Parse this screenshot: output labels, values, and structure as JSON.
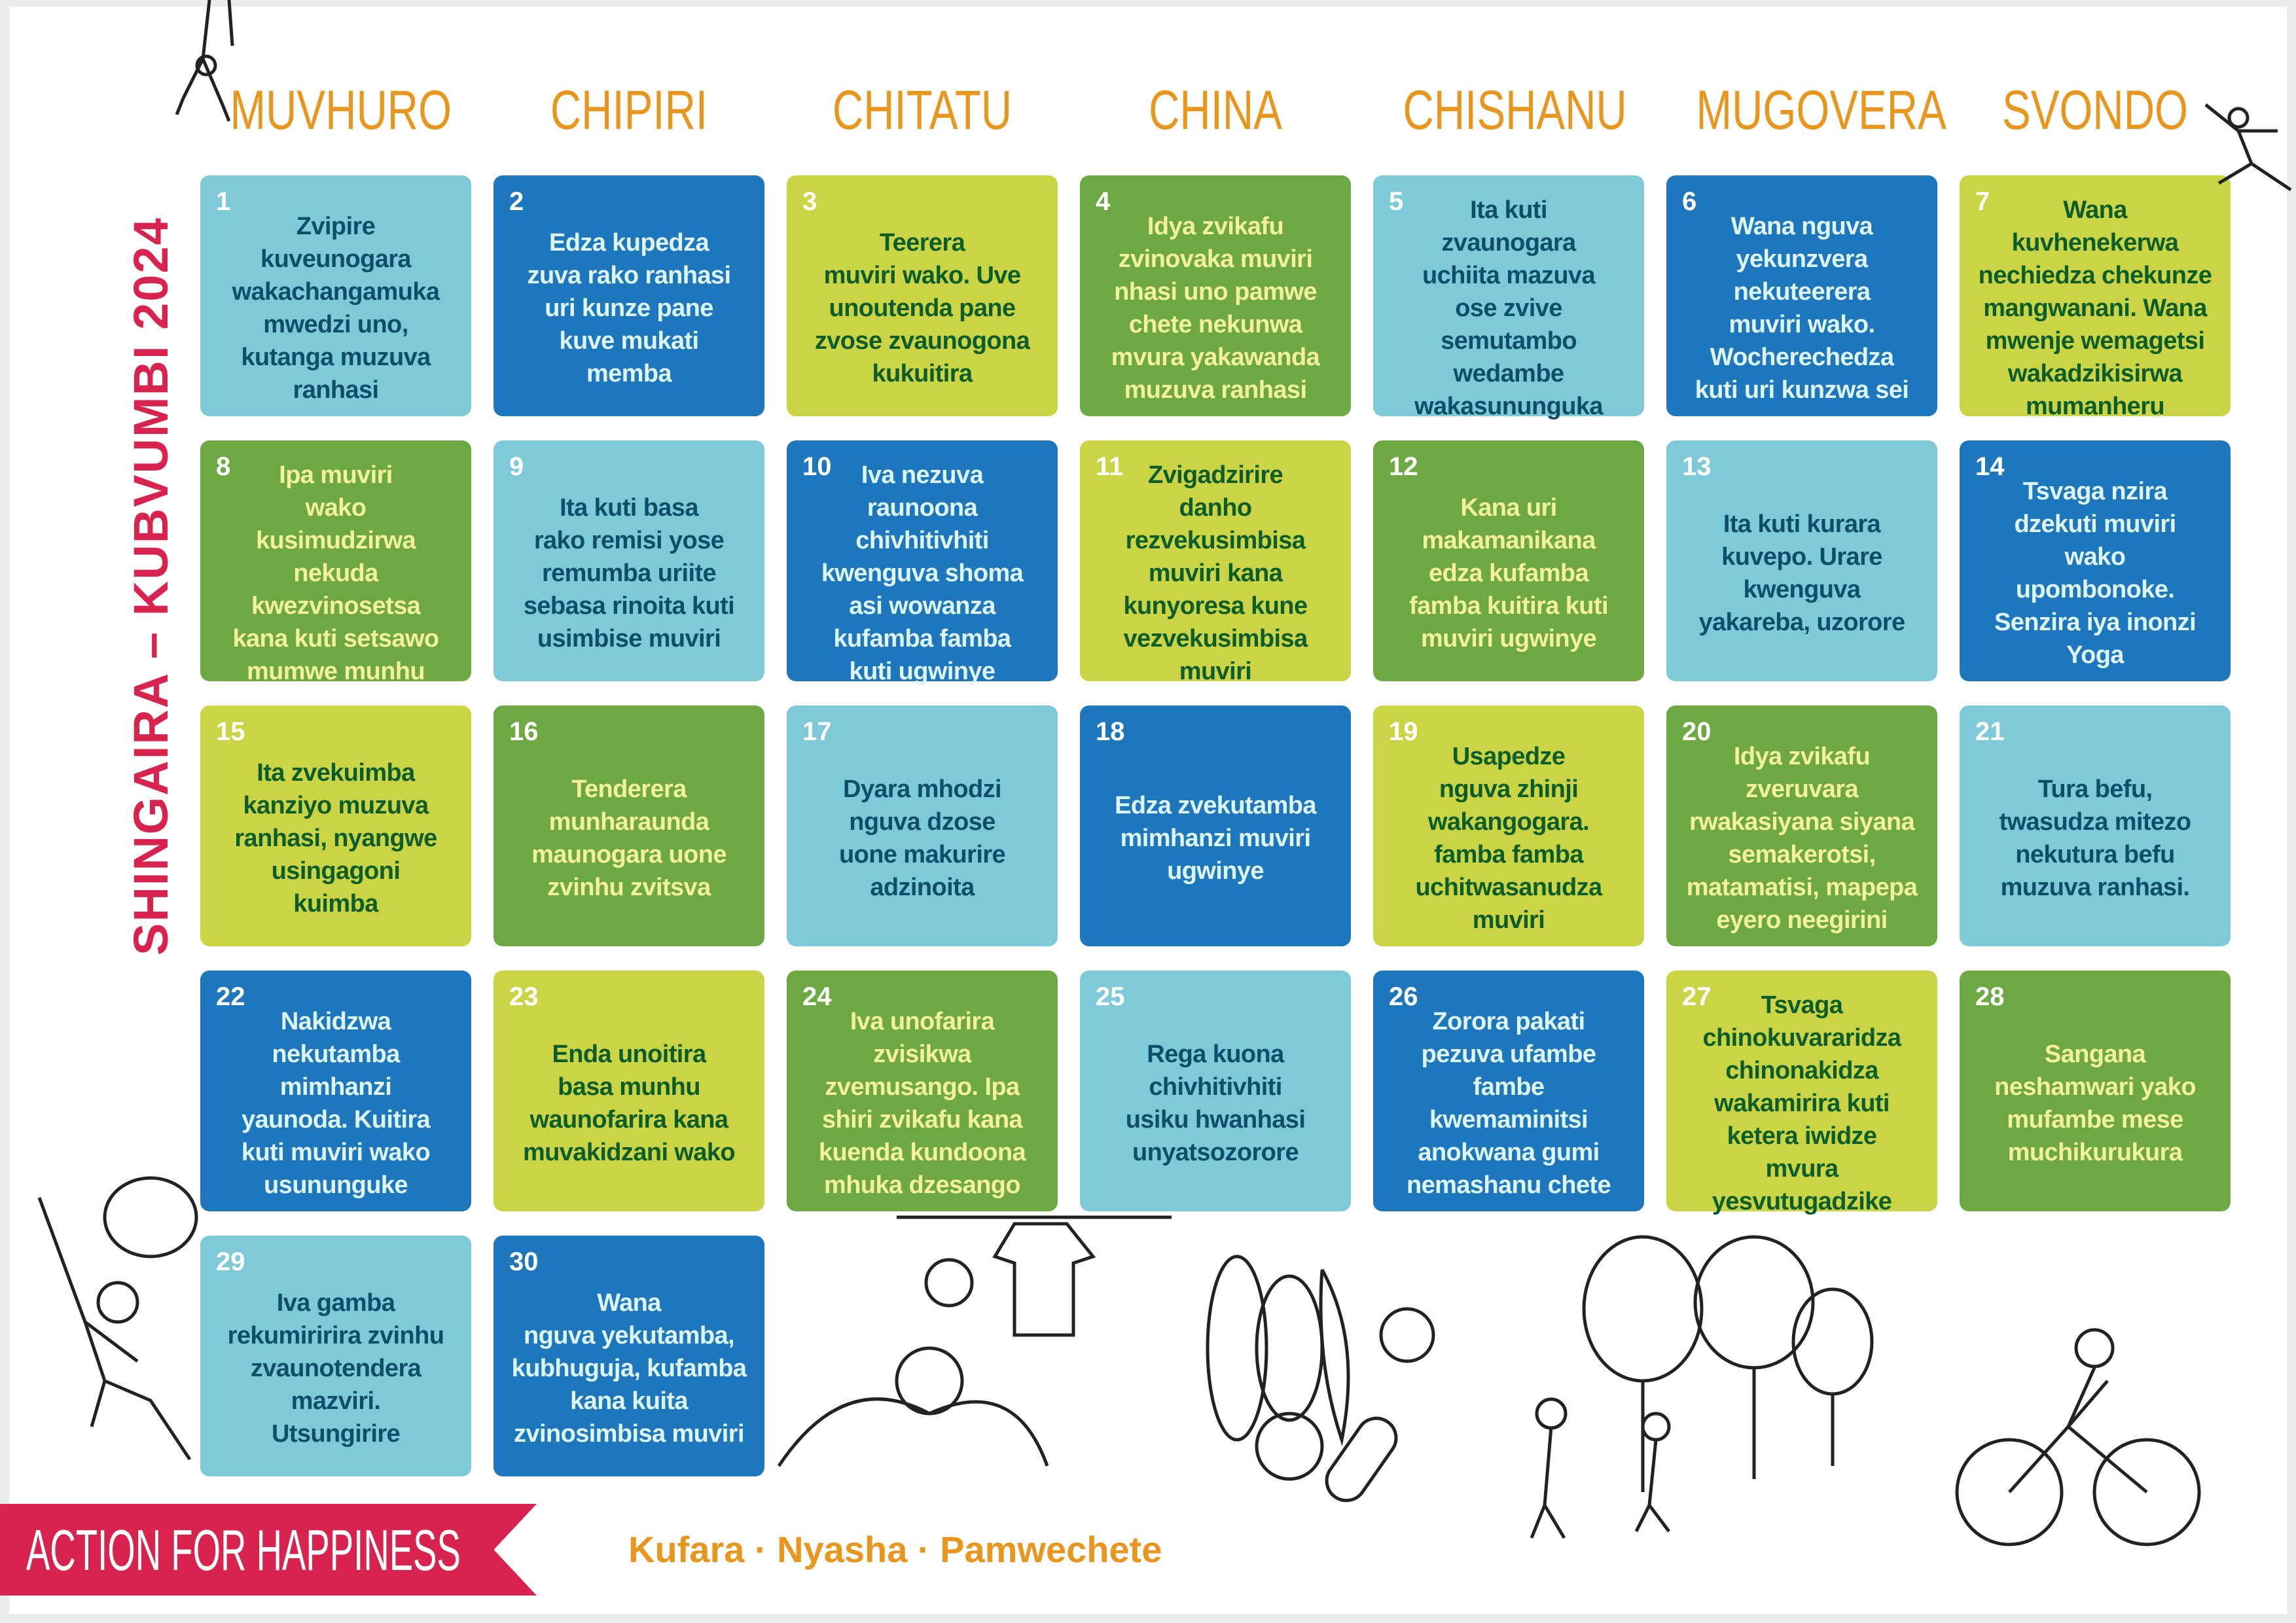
{
  "title": "SHINGAIRA – KUBVUMBI 2024",
  "days_of_week": [
    "MUVHURO",
    "CHIPIRI",
    "CHITATU",
    "CHINA",
    "CHISHANU",
    "MUGOVERA",
    "SVONDO"
  ],
  "colors": {
    "light_blue": "#7FCAD8",
    "blue": "#1E77BD",
    "lime": "#CBD444",
    "green": "#6EA842",
    "accent_red": "#D9234F",
    "accent_orange": "#E8961E"
  },
  "calendar": [
    {
      "day": "1",
      "color": "lb",
      "text": "Zvipire\nkuveunogara\nwakachangamuka\nmwedzi uno,\nkutanga muzuva\nranhasi"
    },
    {
      "day": "2",
      "color": "b",
      "text": "Edza kupedza\nzuva rako ranhasi\nuri kunze pane\nkuve mukati\nmemba"
    },
    {
      "day": "3",
      "color": "lime",
      "text": "Teerera\nmuviri wako. Uve\nunoutenda pane\nzvose zvaunogona\nkukuitira"
    },
    {
      "day": "4",
      "color": "g",
      "text": "Idya zvikafu\nzvinovaka  muviri\nnhasi uno pamwe\nchete nekunwa\nmvura yakawanda\nmuzuva ranhasi"
    },
    {
      "day": "5",
      "color": "lb",
      "text": "Ita kuti\nzvaunogara\nuchiita mazuva\nose zvive\nsemutambo\nwedambe\nwakasununguka"
    },
    {
      "day": "6",
      "color": "b",
      "text": "Wana nguva\nyekunzvera\nnekuteerera\nmuviri wako.\nWocherechedza\nkuti uri kunzwa sei"
    },
    {
      "day": "7",
      "color": "lime",
      "text": "Wana\nkuvhenekerwa\nnechiedza chekunze\nmangwanani. Wana\nmwenje wemagetsi\nwakadzikisirwa\nmumanheru"
    },
    {
      "day": "8",
      "color": "g",
      "text": "Ipa muviri\nwako\nkusimudzirwa\nnekuda\nkwezvinosetsa\nkana kuti setsawo\nmumwe munhu"
    },
    {
      "day": "9",
      "color": "lb",
      "text": "Ita kuti basa\nrako remisi yose\nremumba uriite\nsebasa rinoita kuti\nusimbise muviri"
    },
    {
      "day": "10",
      "color": "b",
      "text": "Iva nezuva\nraunoona\nchivhitivhiti\nkwenguva shoma\nasi wowanza\nkufamba famba\nkuti ugwinye"
    },
    {
      "day": "11",
      "color": "lime",
      "text": "Zvigadzirire\ndanho\nrezvekusimbisa\nmuviri kana\nkunyoresa kune\nvezvekusimbisa\nmuviri"
    },
    {
      "day": "12",
      "color": "g",
      "text": "Kana uri\nmakamanikana\nedza kufamba\nfamba kuitira kuti\nmuviri ugwinye"
    },
    {
      "day": "13",
      "color": "lb",
      "text": "Ita kuti kurara\nkuvepo. Urare\nkwenguva\nyakareba, uzorore"
    },
    {
      "day": "14",
      "color": "b",
      "text": "Tsvaga nzira\ndzekuti muviri\nwako\nupombonoke.\nSenzira iya inonzi\nYoga"
    },
    {
      "day": "15",
      "color": "lime",
      "text": "Ita zvekuimba\nkanziyo muzuva\nranhasi, nyangwe\nusingagoni\nkuimba"
    },
    {
      "day": "16",
      "color": "g",
      "text": "Tenderera\nmunharaunda\nmaunogara uone\nzvinhu zvitsva"
    },
    {
      "day": "17",
      "color": "lb",
      "text": "Dyara mhodzi\nnguva dzose\nuone makurire\nadzinoita"
    },
    {
      "day": "18",
      "color": "b",
      "text": "Edza zvekutamba\nmimhanzi muviri\nugwinye"
    },
    {
      "day": "19",
      "color": "lime",
      "text": "Usapedze\nnguva zhinji\nwakangogara.\nfamba famba\nuchitwasanudza\nmuviri"
    },
    {
      "day": "20",
      "color": "g",
      "text": "Idya zvikafu\nzveruvara\nrwakasiyana siyana\nsemakerotsi,\nmatamatisi, mapepa\neyero neegirini"
    },
    {
      "day": "21",
      "color": "lb",
      "text": "Tura befu,\ntwasudza mitezo\nnekutura befu\nmuzuva ranhasi."
    },
    {
      "day": "22",
      "color": "b",
      "text": "Nakidzwa\nnekutamba\nmimhanzi\nyaunoda. Kuitira\nkuti muviri wako\nusununguke"
    },
    {
      "day": "23",
      "color": "lime",
      "text": "Enda unoitira\nbasa munhu\nwaunofarira kana\nmuvakidzani wako"
    },
    {
      "day": "24",
      "color": "g",
      "text": "Iva unofarira\nzvisikwa\nzvemusango. Ipa\nshiri zvikafu kana\nkuenda kundoona\nmhuka dzesango"
    },
    {
      "day": "25",
      "color": "lb",
      "text": "Rega kuona\nchivhitivhiti\nusiku hwanhasi\nunyatsozorore"
    },
    {
      "day": "26",
      "color": "b",
      "text": "Zorora pakati\npezuva ufambe\nfambe\nkwemaminitsi\nanokwana gumi\nnemashanu chete"
    },
    {
      "day": "27",
      "color": "lime",
      "text": "Tsvaga\nchinokuvararidza\nchinonakidza\nwakamirira kuti\nketera iwidze\nmvura\nyesvutugadzike"
    },
    {
      "day": "28",
      "color": "g",
      "text": "Sangana\nneshamwari  yako\nmufambe mese\nmuchikurukura"
    },
    {
      "day": "29",
      "color": "lb",
      "text": "Iva gamba\nrekumiririra zvinhu\nzvaunotendera\nmazviri.\nUtsungirire"
    },
    {
      "day": "30",
      "color": "b",
      "text": "Wana\nnguva yekutamba,\nkubhuguja, kufamba\nkana kuita\nzvinosimbisa muviri"
    }
  ],
  "footer": {
    "brand": "ACTION FOR HAPPINESS",
    "tagline": "Kufara · Nyasha · Pamwechete"
  }
}
